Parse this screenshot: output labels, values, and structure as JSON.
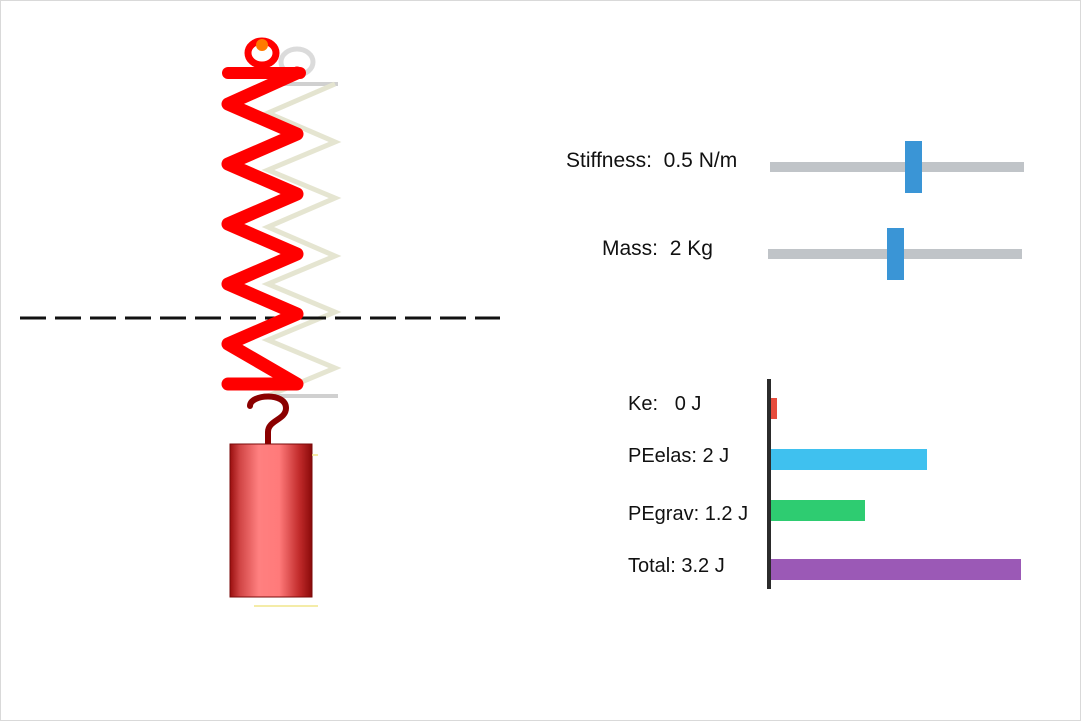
{
  "controls": {
    "stiffness": {
      "label": "Stiffness:",
      "value_text": "0.5 N/m",
      "level": 0.57
    },
    "mass": {
      "label": "Mass:",
      "value_text": "2 Kg",
      "level": 0.5
    }
  },
  "energy": {
    "items": [
      {
        "label": "Ke:",
        "value_text": "0 J",
        "value": 0,
        "color": "#e74c3c"
      },
      {
        "label": "PEelas:",
        "value_text": "2 J",
        "value": 2,
        "color": "#3fc1ef"
      },
      {
        "label": "PEgrav:",
        "value_text": "1.2 J",
        "value": 1.2,
        "color": "#2ecc71"
      },
      {
        "label": "Total:",
        "value_text": "3.2 J",
        "value": 3.2,
        "color": "#9b59b6"
      }
    ]
  },
  "colors": {
    "spring": "#ff0000",
    "ghost_spring": "#d6d6c4",
    "hook": "#8b0000",
    "mass_light": "#ff8080",
    "mass_dark": "#9a0f0f",
    "slider_track": "#c0c4c8",
    "slider_thumb": "#3a95d6",
    "equilibrium_line": "#111111"
  }
}
